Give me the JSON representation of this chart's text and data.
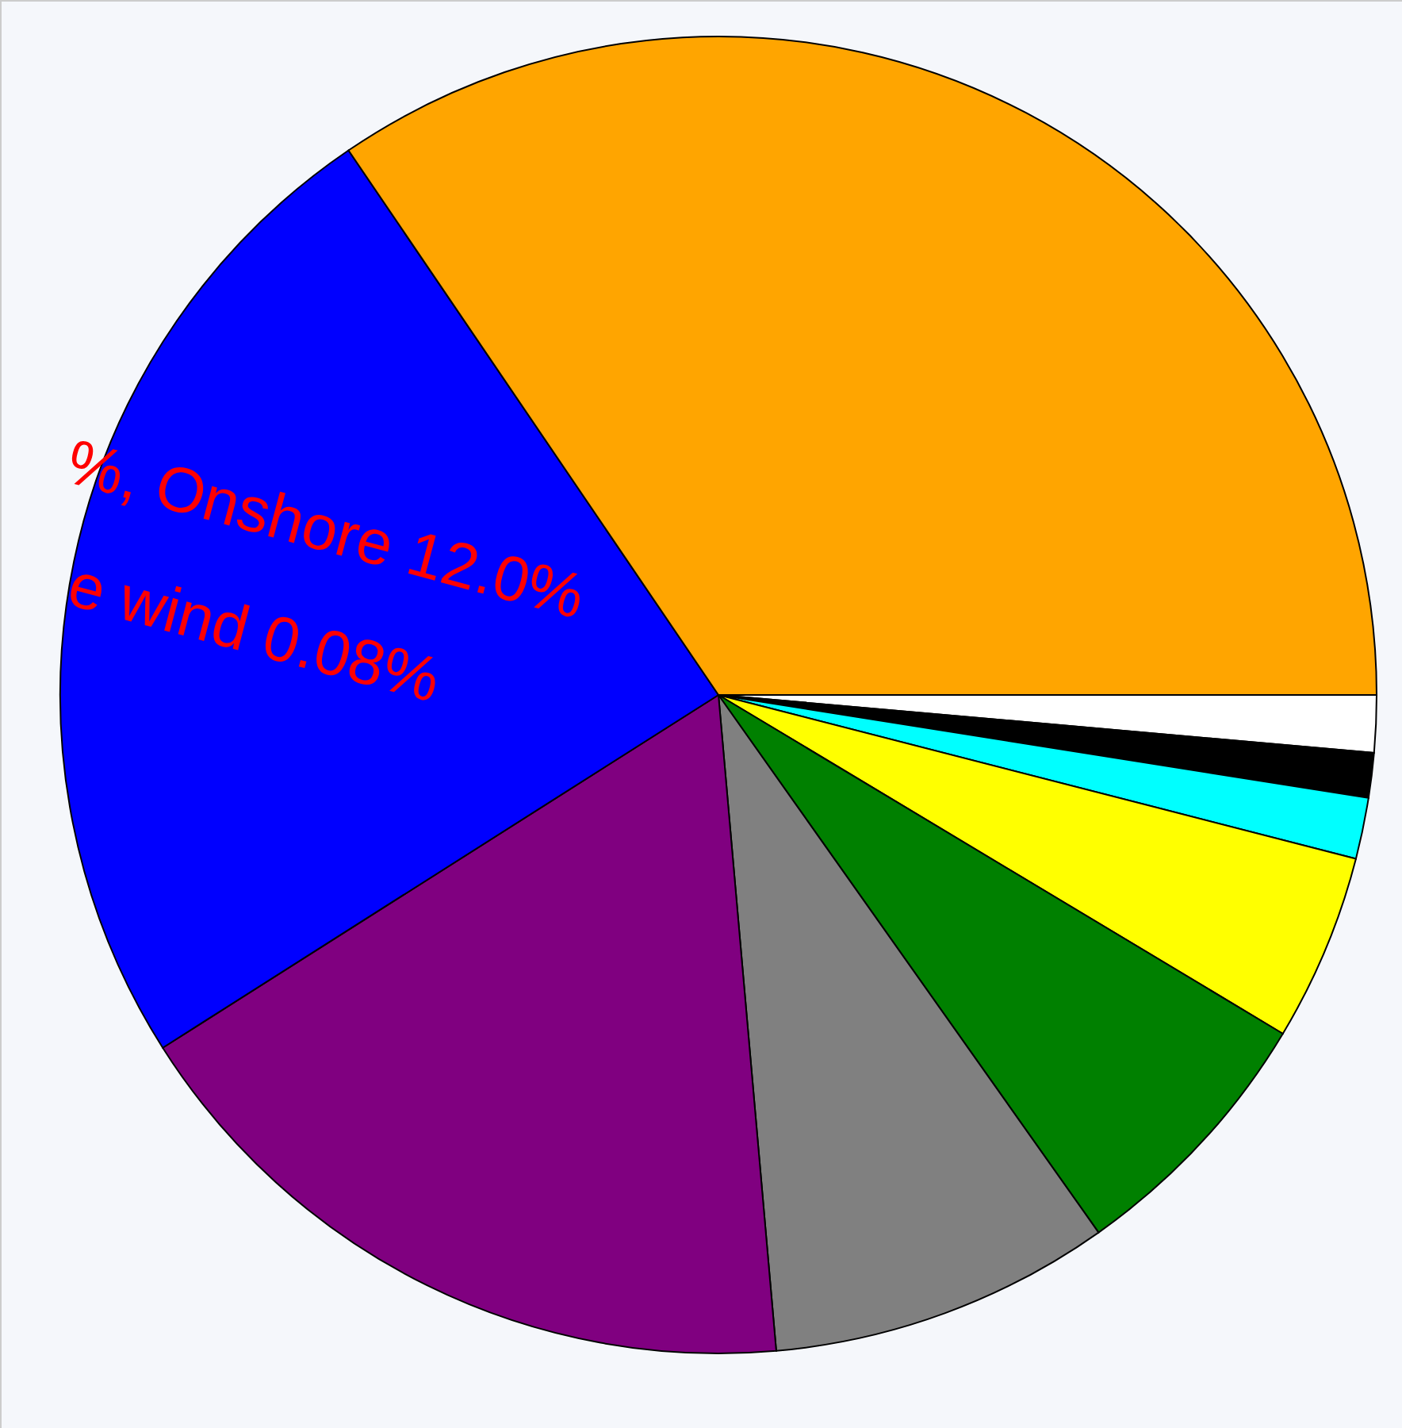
{
  "chart_data": {
    "type": "pie",
    "categories": [
      null,
      null,
      null,
      null,
      null,
      null,
      null,
      null,
      null
    ],
    "values": [
      1.4,
      1.1,
      1.5,
      4.6,
      6.6,
      8.4,
      17.4,
      24.5,
      34.5
    ],
    "colors": [
      "#ffffff",
      "#000000",
      "#00ffff",
      "#ffff00",
      "#008000",
      "#808080",
      "#800080",
      "#0000ff",
      "#ffa500"
    ],
    "annotations": [
      "%, Onshore 12.0%",
      "e wind  0.08%"
    ]
  }
}
